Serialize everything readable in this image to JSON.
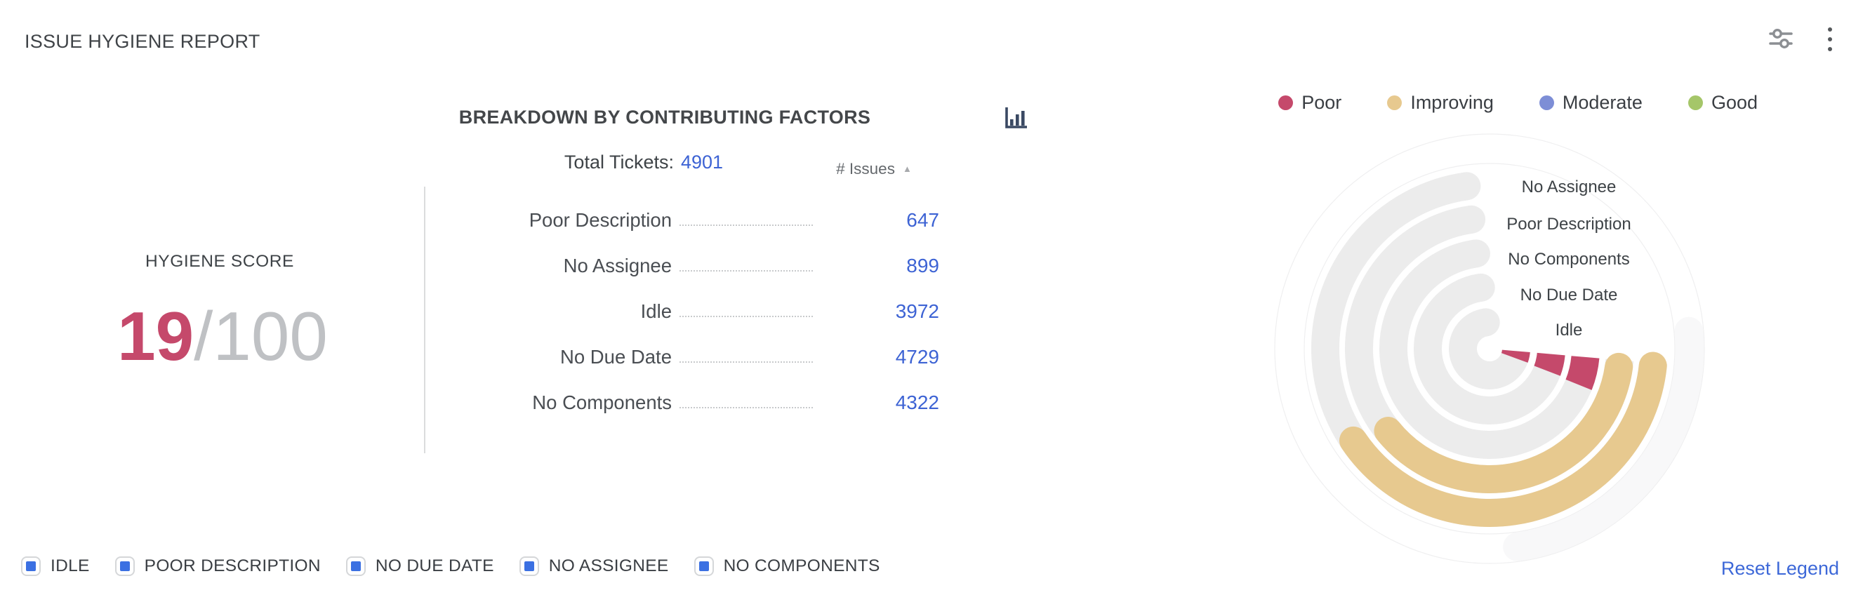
{
  "widget": {
    "title": "ISSUE HYGIENE REPORT"
  },
  "toolbar": {
    "filter_icon": "sliders-icon",
    "menu_icon": "kebab-menu-icon"
  },
  "breakdown": {
    "heading": "BREAKDOWN BY CONTRIBUTING FACTORS",
    "total_label": "Total Tickets:",
    "total_value": "4901",
    "column_header": "# Issues",
    "sort_direction": "ascending",
    "sort_glyph": "▲",
    "rows": [
      {
        "label": "Poor Description",
        "value": "647"
      },
      {
        "label": "No Assignee",
        "value": "899"
      },
      {
        "label": "Idle",
        "value": "3972"
      },
      {
        "label": "No Due Date",
        "value": "4729"
      },
      {
        "label": "No Components",
        "value": "4322"
      }
    ]
  },
  "score": {
    "label": "HYGIENE SCORE",
    "value": "19",
    "out_of": "/100",
    "value_color": "#c5496b"
  },
  "status_legend": [
    {
      "label": "Poor",
      "color": "#c5496b"
    },
    {
      "label": "Improving",
      "color": "#e7c98f"
    },
    {
      "label": "Moderate",
      "color": "#7d8ed6"
    },
    {
      "label": "Good",
      "color": "#a5c669"
    }
  ],
  "chart_data": {
    "type": "radial-bar",
    "title": "Issue hygiene factors (outer to inner ring)",
    "legend_position": "top-right",
    "colors": {
      "track": "#ececec",
      "poor": "#c5496b",
      "improving": "#e7c98f",
      "ghost_band": "#f8f8f9",
      "ghost_hairline": "#efeff0"
    },
    "rings": [
      {
        "label": "No Assignee",
        "issues": 899,
        "status": "improving",
        "radius": 234,
        "fill_start": 96,
        "fill_end": 236
      },
      {
        "label": "Poor Description",
        "issues": 647,
        "status": "improving",
        "radius": 186,
        "fill_start": 98,
        "fill_end": 231
      },
      {
        "label": "No Components",
        "issues": 4322,
        "status": "poor",
        "radius": 137,
        "fill_start": 95,
        "fill_end": 112
      },
      {
        "label": "No Due Date",
        "issues": 4729,
        "status": "poor",
        "radius": 88,
        "fill_start": 95,
        "fill_end": 111
      },
      {
        "label": "Idle",
        "issues": 3972,
        "status": "poor",
        "radius": 38,
        "fill_start": 95,
        "fill_end": 110
      }
    ],
    "track_start_deg": 95,
    "track_end_deg": 352,
    "ring_thickness": 40
  },
  "bottom_legend": {
    "items": [
      "IDLE",
      "POOR DESCRIPTION",
      "NO DUE DATE",
      "NO ASSIGNEE",
      "NO COMPONENTS"
    ],
    "checkbox_color": "#3b70e2",
    "reset_label": "Reset Legend"
  }
}
